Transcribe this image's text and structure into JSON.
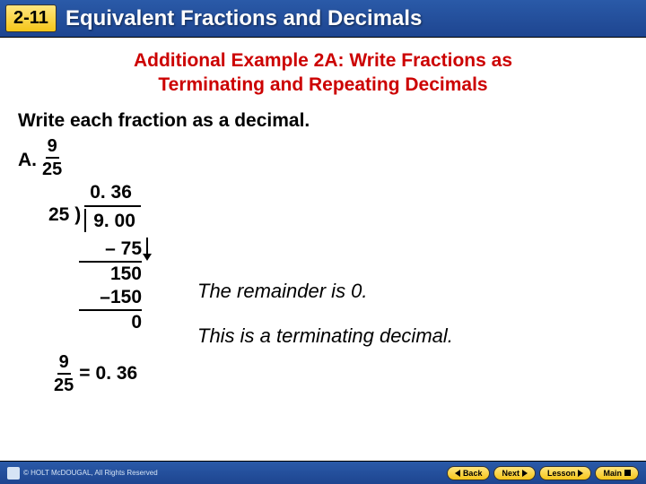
{
  "header": {
    "badge": "2-11",
    "title": "Equivalent Fractions and Decimals"
  },
  "example": {
    "title_line1": "Additional Example 2A: Write Fractions as",
    "title_line2": "Terminating and Repeating Decimals",
    "instruction": "Write each fraction as a decimal.",
    "label": "A.",
    "fraction": {
      "num": "9",
      "den": "25"
    },
    "longdiv": {
      "divisor": "25",
      "paren": ")",
      "quotient": "0. 36",
      "dividend": "9. 00"
    },
    "steps": {
      "s1": "– 75",
      "s2": "150",
      "s3": "–150",
      "s4": "0"
    },
    "explain1": "The remainder is 0.",
    "explain2": "This is a terminating decimal.",
    "result": {
      "num": "9",
      "den": "25",
      "eq": "=",
      "val": "0. 36"
    }
  },
  "footer": {
    "copyright": "© HOLT McDOUGAL, All Rights Reserved",
    "buttons": {
      "back": "Back",
      "next": "Next",
      "lesson": "Lesson",
      "main": "Main"
    }
  },
  "colors": {
    "header_grad_top": "#2a5aa8",
    "header_grad_bot": "#1e4590",
    "badge_grad_top": "#ffe680",
    "badge_grad_bot": "#f5c518",
    "title_red": "#cc0000",
    "text": "#000000",
    "bg": "#ffffff"
  }
}
